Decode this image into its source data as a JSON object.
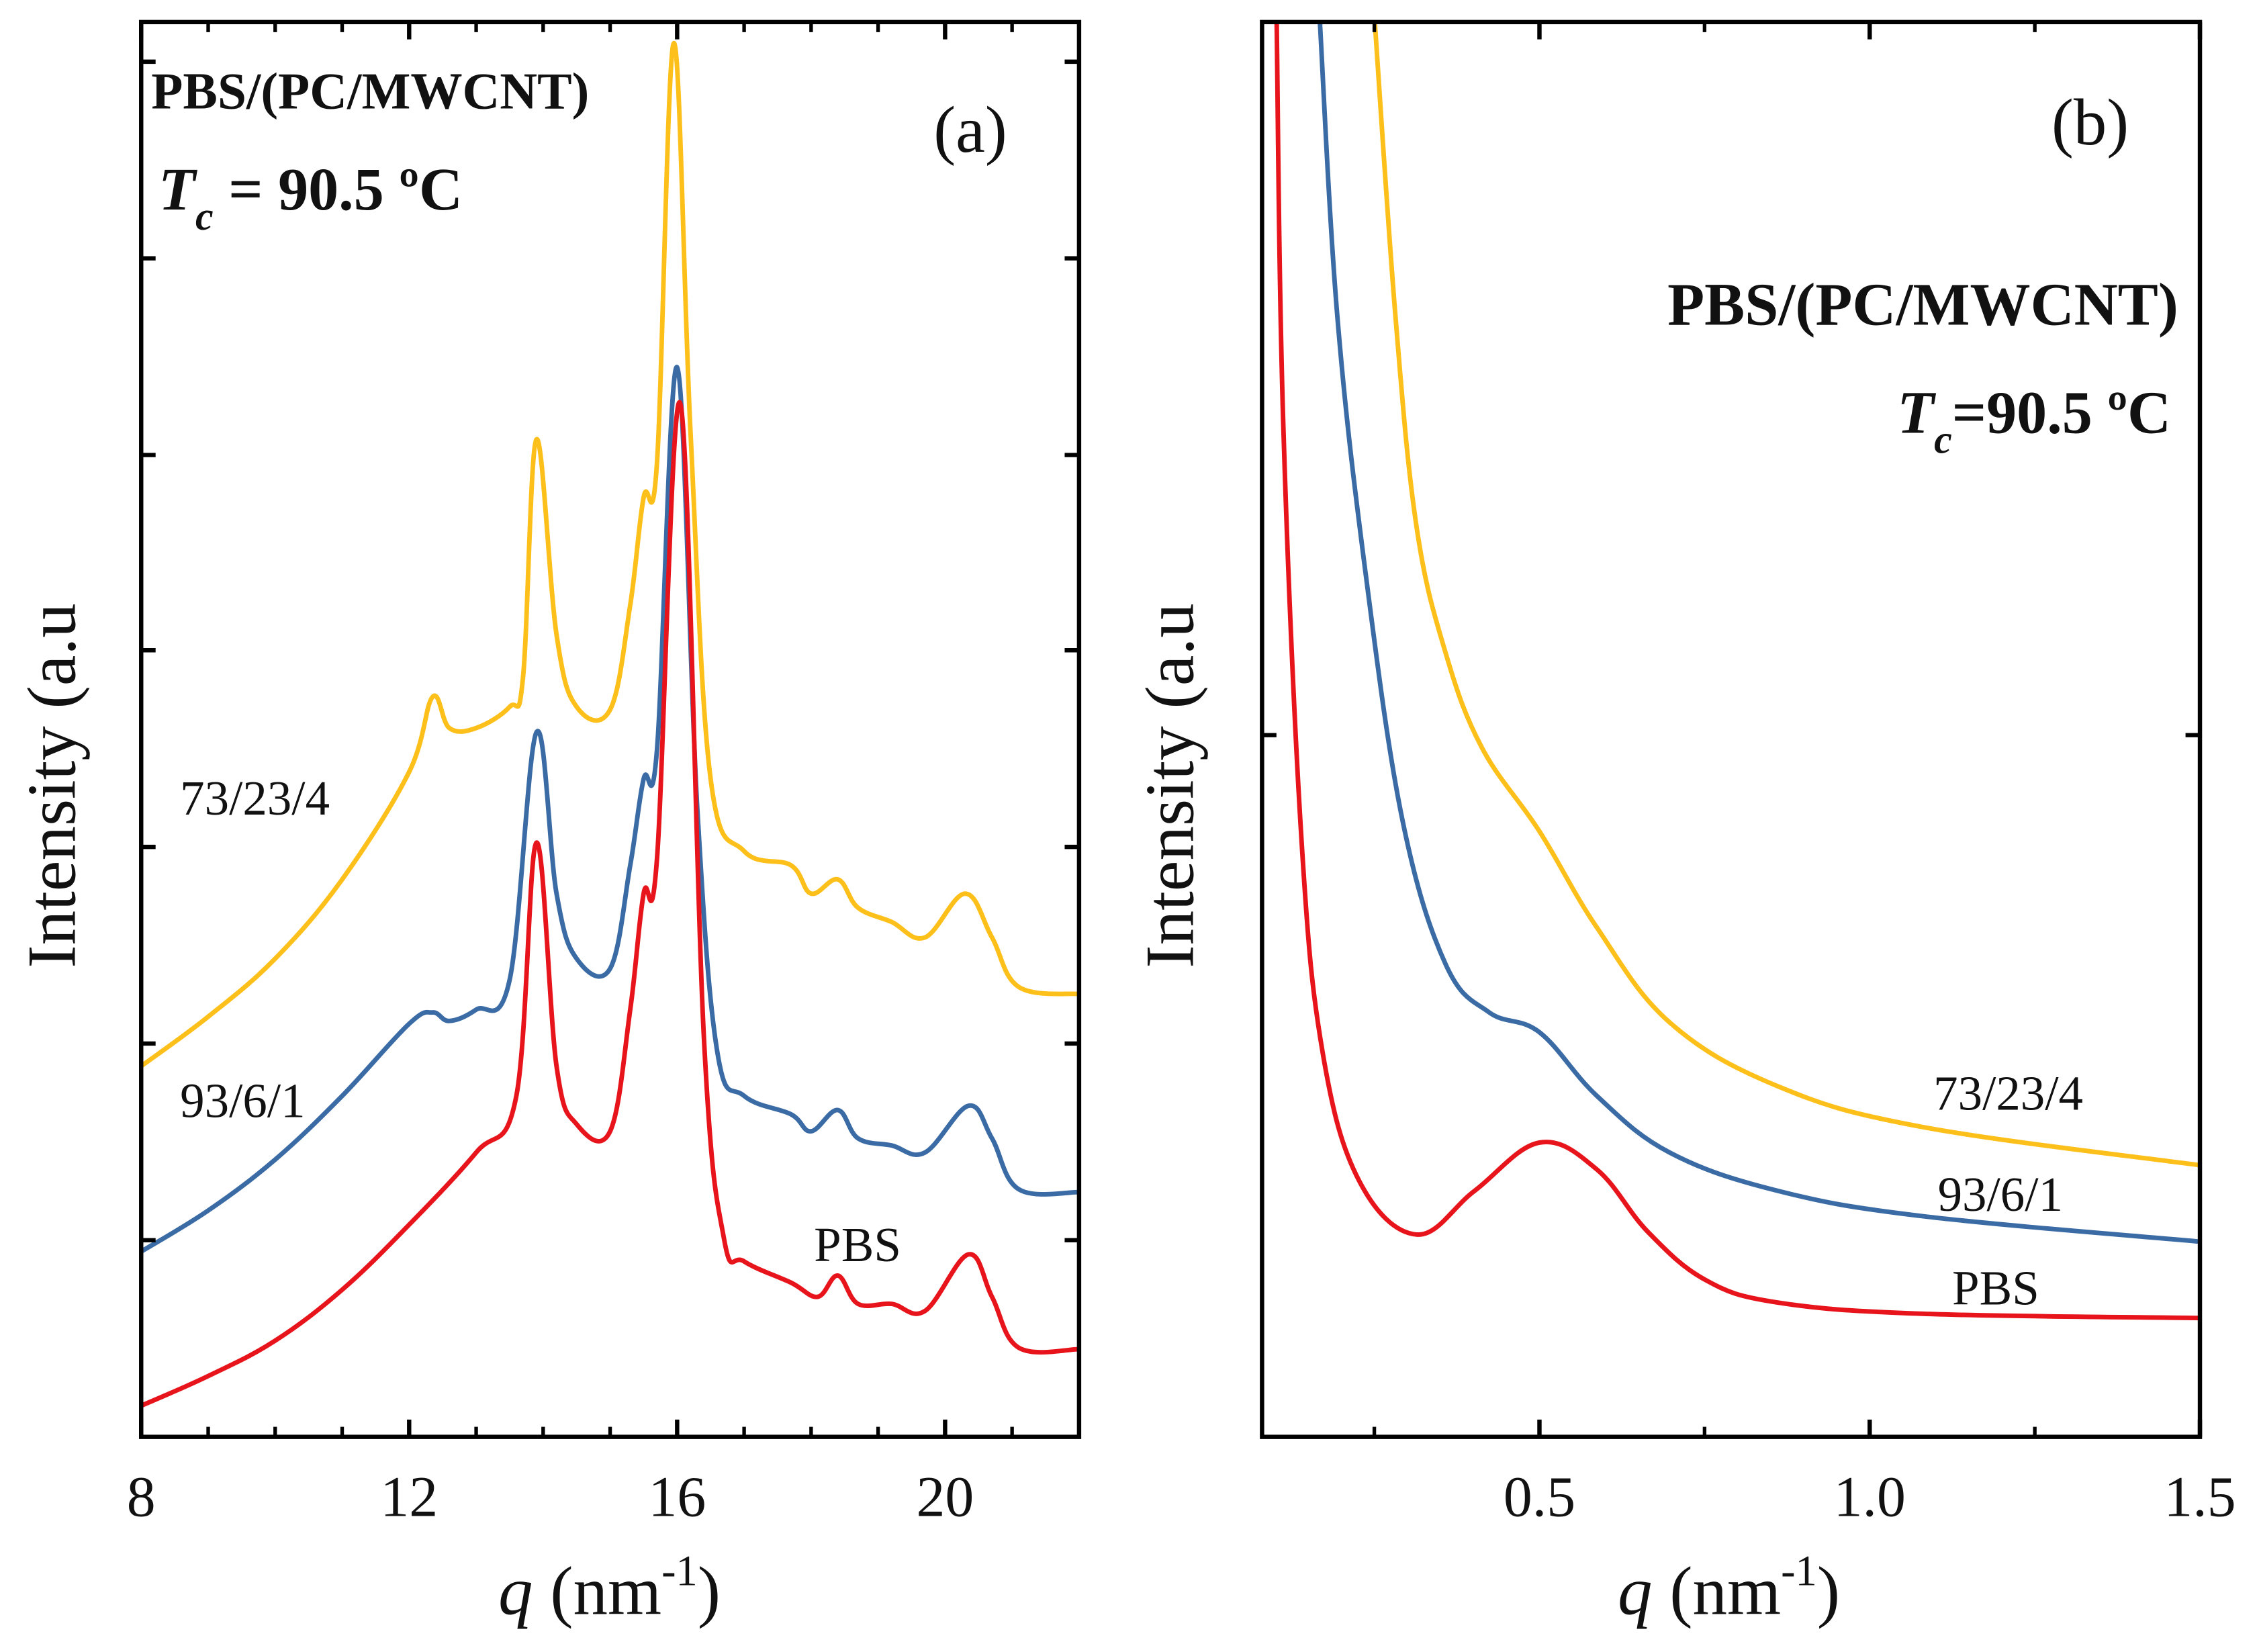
{
  "chart_data": [
    {
      "type": "line",
      "panel_label": "(a)",
      "title": "PBS/(PC/MWCNT)",
      "annotation": {
        "symbol": "T",
        "subscript": "c",
        "text": " = 90.5 ºC"
      },
      "xlabel": {
        "symbol": "q",
        "text": " (nm",
        "sup": "-1",
        "close": ")"
      },
      "ylabel": "Intensity (a.u",
      "xlim": [
        8,
        22
      ],
      "ylim": [
        0,
        100
      ],
      "xticks": [
        8,
        12,
        16,
        20
      ],
      "xtick_labels": [
        "8",
        "12",
        "16",
        "20"
      ],
      "x_minor_step": 1,
      "yticks_unlabeled": [
        13.9,
        27.8,
        41.7,
        55.6,
        69.4,
        83.3,
        97.2
      ],
      "grid": false,
      "series": [
        {
          "name": "73/23/4",
          "color": "#FDC01A",
          "x": [
            8,
            9,
            10,
            11,
            12,
            12.35,
            12.6,
            13,
            13.5,
            13.7,
            13.9,
            14.2,
            14.5,
            15,
            15.3,
            15.5,
            15.7,
            15.95,
            16.2,
            16.5,
            17,
            17.7,
            18,
            18.4,
            18.7,
            19.2,
            19.7,
            20.3,
            20.7,
            21.1,
            22
          ],
          "y": [
            26.2,
            29.7,
            33.8,
            39.4,
            47.0,
            52.3,
            50.1,
            50.1,
            51.6,
            53.7,
            70.5,
            56.7,
            51.6,
            51.4,
            58.8,
            66.4,
            68.9,
            98.5,
            71.0,
            46.5,
            41.4,
            40.4,
            38.4,
            39.4,
            37.4,
            36.4,
            35.3,
            38.4,
            35.3,
            31.8,
            31.3
          ]
        },
        {
          "name": "93/6/1",
          "color": "#3B6BA5",
          "x": [
            8,
            9,
            10,
            11,
            12,
            12.35,
            12.6,
            13,
            13.5,
            13.9,
            14.2,
            14.5,
            15,
            15.3,
            15.5,
            15.7,
            16,
            16.3,
            16.6,
            17,
            17.7,
            18,
            18.4,
            18.7,
            19.2,
            19.7,
            20.35,
            20.7,
            21.1,
            22
          ],
          "y": [
            13.1,
            16.0,
            19.6,
            24.1,
            29.2,
            30.0,
            29.4,
            30.2,
            32.3,
            49.8,
            38.4,
            33.8,
            33.1,
            40.4,
            46.5,
            48.6,
            75.6,
            44.5,
            27.2,
            24.1,
            22.8,
            21.6,
            23.1,
            21.1,
            20.6,
            20.1,
            23.4,
            21.1,
            17.5,
            17.3
          ]
        },
        {
          "name": "PBS",
          "color": "#E8141C",
          "x": [
            8,
            9,
            10,
            11,
            12,
            13,
            13.6,
            13.9,
            14.2,
            14.5,
            15,
            15.3,
            15.5,
            15.7,
            16.05,
            16.4,
            16.7,
            17,
            17.7,
            18.1,
            18.4,
            18.7,
            19.2,
            19.7,
            20.35,
            20.7,
            21.1,
            22
          ],
          "y": [
            2.2,
            4.3,
            6.8,
            10.4,
            15.0,
            20.1,
            24.1,
            42.0,
            26.2,
            22.1,
            21.6,
            30.2,
            38.4,
            40.9,
            73.0,
            28.2,
            14.0,
            12.4,
            10.9,
            9.9,
            11.4,
            9.4,
            9.4,
            8.9,
            12.9,
            9.9,
            6.3,
            6.2
          ]
        }
      ],
      "series_labels": [
        "73/23/4",
        "93/6/1",
        "PBS"
      ]
    },
    {
      "type": "line",
      "panel_label": "(b)",
      "title": "PBS/(PC/MWCNT)",
      "annotation": {
        "symbol": "T",
        "subscript": "c",
        "text": "=90.5 ºC"
      },
      "xlabel": {
        "symbol": "q",
        "text": " (nm",
        "sup": "-1",
        "close": ")"
      },
      "ylabel": "Intensity (a.u",
      "xlim": [
        0.08,
        1.5
      ],
      "ylim": [
        0,
        100
      ],
      "xticks": [
        0.5,
        1.0,
        1.5
      ],
      "xtick_labels": [
        "0.5",
        "1.0",
        "1.5"
      ],
      "x_minor_ticks": [
        0.25,
        0.75,
        1.25
      ],
      "yticks_unlabeled": [
        49.6
      ],
      "grid": false,
      "series": [
        {
          "name": "73/23/4",
          "color": "#FDC01A",
          "x": [
            0.25,
            0.282,
            0.314,
            0.358,
            0.413,
            0.5,
            0.587,
            0.697,
            0.86,
            1.08,
            1.5
          ],
          "y": [
            100,
            79.2,
            64.3,
            55.4,
            48.7,
            42.8,
            36.0,
            29.3,
            24.8,
            21.9,
            19.2
          ]
        },
        {
          "name": "93/6/1",
          "color": "#3B6BA5",
          "x": [
            0.167,
            0.194,
            0.238,
            0.293,
            0.358,
            0.424,
            0.5,
            0.587,
            0.697,
            0.86,
            1.08,
            1.5
          ],
          "y": [
            100,
            79.2,
            60.6,
            43.5,
            33.4,
            30.0,
            28.6,
            24.1,
            20.1,
            17.4,
            15.6,
            13.8
          ]
        },
        {
          "name": "PBS",
          "color": "#E8141C",
          "x": [
            0.102,
            0.112,
            0.14,
            0.172,
            0.227,
            0.314,
            0.402,
            0.5,
            0.587,
            0.664,
            0.751,
            0.86,
            1.08,
            1.5
          ],
          "y": [
            100,
            71.8,
            42.0,
            27.1,
            18.1,
            14.3,
            17.4,
            20.8,
            18.9,
            14.5,
            11.1,
            9.5,
            8.7,
            8.4
          ]
        }
      ],
      "series_labels": [
        "73/23/4",
        "93/6/1",
        "PBS"
      ]
    }
  ]
}
